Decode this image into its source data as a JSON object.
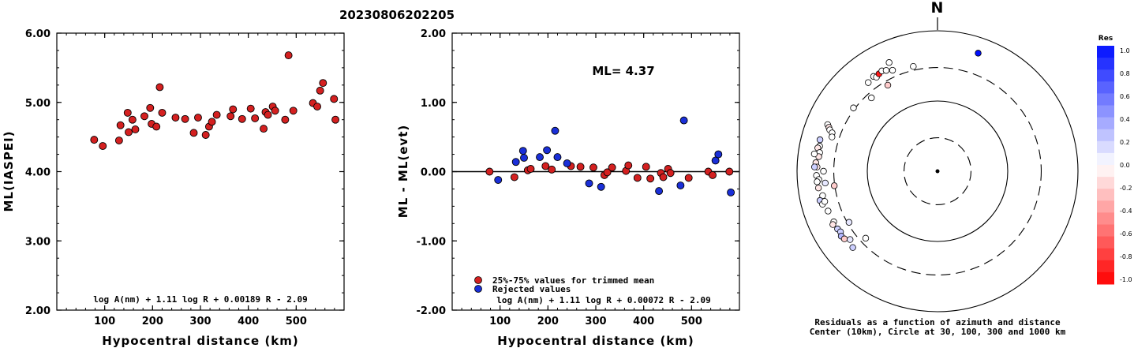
{
  "title": "20230806202205",
  "chart_data": [
    {
      "type": "scatter",
      "ylabel": "ML(IASPEI)",
      "xlabel": "Hypocentral distance (km)",
      "xlim": [
        0,
        600
      ],
      "ylim": [
        2.0,
        6.0
      ],
      "xticks": [
        "100",
        "200",
        "300",
        "400",
        "500"
      ],
      "yticks": [
        "2.00",
        "3.00",
        "4.00",
        "5.00",
        "6.00"
      ],
      "formula": "log A(nm) + 1.11 log R + 0.00189 R - 2.09",
      "marker_color": "#d42020",
      "points": [
        [
          78,
          4.46
        ],
        [
          96,
          4.37
        ],
        [
          130,
          4.45
        ],
        [
          133,
          4.67
        ],
        [
          148,
          4.85
        ],
        [
          150,
          4.57
        ],
        [
          158,
          4.75
        ],
        [
          164,
          4.61
        ],
        [
          183,
          4.8
        ],
        [
          195,
          4.92
        ],
        [
          198,
          4.69
        ],
        [
          208,
          4.65
        ],
        [
          215,
          5.22
        ],
        [
          220,
          4.85
        ],
        [
          248,
          4.78
        ],
        [
          268,
          4.76
        ],
        [
          286,
          4.56
        ],
        [
          295,
          4.78
        ],
        [
          311,
          4.53
        ],
        [
          318,
          4.65
        ],
        [
          324,
          4.72
        ],
        [
          334,
          4.82
        ],
        [
          363,
          4.8
        ],
        [
          368,
          4.9
        ],
        [
          387,
          4.76
        ],
        [
          405,
          4.91
        ],
        [
          414,
          4.77
        ],
        [
          432,
          4.62
        ],
        [
          436,
          4.86
        ],
        [
          441,
          4.82
        ],
        [
          451,
          4.94
        ],
        [
          456,
          4.88
        ],
        [
          477,
          4.75
        ],
        [
          484,
          5.68
        ],
        [
          494,
          4.88
        ],
        [
          535,
          4.99
        ],
        [
          544,
          4.94
        ],
        [
          550,
          5.17
        ],
        [
          556,
          5.28
        ],
        [
          579,
          5.05
        ],
        [
          582,
          4.75
        ]
      ]
    },
    {
      "type": "scatter",
      "ylabel": "ML - ML(evt)",
      "xlabel": "Hypocentral distance (km)",
      "xlim": [
        0,
        600
      ],
      "ylim": [
        -2.0,
        2.0
      ],
      "xticks": [
        "100",
        "200",
        "300",
        "400",
        "500"
      ],
      "yticks": [
        "-2.00",
        "-1.00",
        "0.00",
        "1.00",
        "2.00"
      ],
      "annotation": "ML= 4.37",
      "formula": "log A(nm) + 1.11 log R + 0.00072 R - 2.09",
      "legend": [
        {
          "label": "25%-75% values for trimmed mean",
          "color": "#d42020"
        },
        {
          "label": "Rejected values",
          "color": "#1a2fd8"
        }
      ],
      "series": [
        {
          "name": "25%-75% values for trimmed mean",
          "color": "#d42020",
          "points": [
            [
              78,
              0.0
            ],
            [
              130,
              -0.08
            ],
            [
              158,
              0.02
            ],
            [
              164,
              0.04
            ],
            [
              195,
              0.08
            ],
            [
              208,
              0.03
            ],
            [
              248,
              0.08
            ],
            [
              268,
              0.07
            ],
            [
              295,
              0.06
            ],
            [
              318,
              -0.05
            ],
            [
              324,
              -0.01
            ],
            [
              334,
              0.06
            ],
            [
              363,
              0.01
            ],
            [
              368,
              0.09
            ],
            [
              387,
              -0.09
            ],
            [
              405,
              0.07
            ],
            [
              414,
              -0.1
            ],
            [
              436,
              -0.02
            ],
            [
              441,
              -0.08
            ],
            [
              451,
              0.04
            ],
            [
              456,
              -0.02
            ],
            [
              494,
              -0.09
            ],
            [
              535,
              0.0
            ],
            [
              544,
              -0.05
            ],
            [
              579,
              0.0
            ]
          ]
        },
        {
          "name": "Rejected values",
          "color": "#1a2fd8",
          "points": [
            [
              96,
              -0.12
            ],
            [
              133,
              0.14
            ],
            [
              148,
              0.3
            ],
            [
              150,
              0.2
            ],
            [
              183,
              0.21
            ],
            [
              198,
              0.31
            ],
            [
              215,
              0.59
            ],
            [
              220,
              0.21
            ],
            [
              240,
              0.12
            ],
            [
              286,
              -0.17
            ],
            [
              311,
              -0.22
            ],
            [
              432,
              -0.28
            ],
            [
              477,
              -0.2
            ],
            [
              484,
              0.74
            ],
            [
              550,
              0.16
            ],
            [
              556,
              0.25
            ],
            [
              582,
              -0.3
            ]
          ]
        }
      ]
    },
    {
      "type": "scatter",
      "subtype": "polar",
      "north_label": "N",
      "caption_line1": "Residuals as a function of azimuth and distance",
      "caption_line2": "Center (10km), Circle at 30, 100, 300 and 1000 km",
      "colorbar_title": "Res",
      "colorbar_ticks": [
        "1.0",
        "0.8",
        "0.6",
        "0.4",
        "0.2",
        "0.0",
        "-0.2",
        "-0.4",
        "-0.6",
        "-0.8",
        "-1.0"
      ],
      "rings_km": [
        30,
        100,
        300,
        1000
      ],
      "points": [
        {
          "az": 293,
          "dist": 500,
          "res": 0.0
        },
        {
          "az": 292,
          "dist": 465,
          "res": -0.1
        },
        {
          "az": 291,
          "dist": 440,
          "res": 0.0
        },
        {
          "az": 290,
          "dist": 395,
          "res": 0.0
        },
        {
          "az": 288,
          "dist": 380,
          "res": 0.0
        },
        {
          "az": 285,
          "dist": 540,
          "res": 0.2
        },
        {
          "az": 282,
          "dist": 520,
          "res": 0.0
        },
        {
          "az": 281,
          "dist": 545,
          "res": -0.1
        },
        {
          "az": 279,
          "dist": 500,
          "res": 0.0
        },
        {
          "az": 277,
          "dist": 505,
          "res": -0.1
        },
        {
          "az": 274,
          "dist": 545,
          "res": -0.1
        },
        {
          "az": 272,
          "dist": 520,
          "res": -0.1
        },
        {
          "az": 272,
          "dist": 565,
          "res": 0.2
        },
        {
          "az": 270,
          "dist": 420,
          "res": 0.0
        },
        {
          "az": 268,
          "dist": 530,
          "res": 0.0
        },
        {
          "az": 266,
          "dist": 495,
          "res": 0.0
        },
        {
          "az": 265,
          "dist": 525,
          "res": 0.0
        },
        {
          "az": 264,
          "dist": 405,
          "res": 0.1
        },
        {
          "az": 262,
          "dist": 515,
          "res": -0.1
        },
        {
          "az": 258,
          "dist": 470,
          "res": 0.0
        },
        {
          "az": 256,
          "dist": 530,
          "res": 0.2
        },
        {
          "az": 254,
          "dist": 505,
          "res": 0.0
        },
        {
          "az": 250,
          "dist": 455,
          "res": 0.0
        },
        {
          "az": 244,
          "dist": 440,
          "res": 0.0
        },
        {
          "az": 243,
          "dist": 470,
          "res": -0.1
        },
        {
          "az": 240,
          "dist": 440,
          "res": 0.2
        },
        {
          "az": 240,
          "dist": 285,
          "res": 0.1
        },
        {
          "az": 238,
          "dist": 425,
          "res": 0.2
        },
        {
          "az": 236,
          "dist": 450,
          "res": 0.3
        },
        {
          "az": 234,
          "dist": 435,
          "res": -0.2
        },
        {
          "az": 232,
          "dist": 380,
          "res": 0.1
        },
        {
          "az": 228,
          "dist": 420,
          "res": 0.2
        },
        {
          "az": 227,
          "dist": 250,
          "res": 0.0
        },
        {
          "az": 262,
          "dist": 305,
          "res": -0.2
        },
        {
          "az": 307,
          "dist": 315,
          "res": 0.0
        },
        {
          "az": 322,
          "dist": 400,
          "res": 0.0
        },
        {
          "az": 326,
          "dist": 425,
          "res": 0.0
        },
        {
          "az": 327,
          "dist": 395,
          "res": 0.0
        },
        {
          "az": 329,
          "dist": 415,
          "res": -0.9
        },
        {
          "az": 331,
          "dist": 430,
          "res": 0.0
        },
        {
          "az": 333,
          "dist": 408,
          "res": 0.0
        },
        {
          "az": 330,
          "dist": 260,
          "res": -0.2
        },
        {
          "az": 336,
          "dist": 375,
          "res": 0.0
        },
        {
          "az": 347,
          "dist": 340,
          "res": 0.0
        },
        {
          "az": 336,
          "dist": 495,
          "res": 0.0
        },
        {
          "az": 318,
          "dist": 255,
          "res": 0.0
        },
        {
          "az": 255,
          "dist": 460,
          "res": 0.0
        },
        {
          "az": 278,
          "dist": 590,
          "res": 0.0
        },
        {
          "az": 19,
          "dist": 600,
          "res": 1.0
        }
      ]
    }
  ]
}
